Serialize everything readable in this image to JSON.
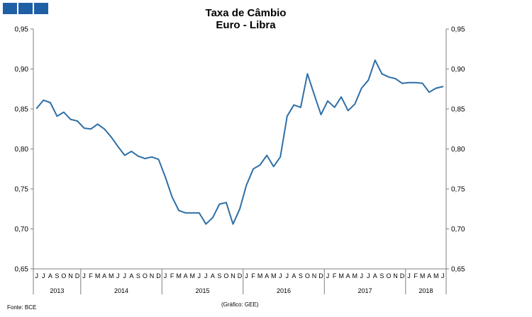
{
  "chart_data": {
    "type": "line",
    "title": "Taxa de Câmbio",
    "subtitle": "Euro - Libra",
    "ylim": [
      0.65,
      0.95
    ],
    "yticks": [
      "0,65",
      "0,70",
      "0,75",
      "0,80",
      "0,85",
      "0,90",
      "0,95"
    ],
    "y_axes": "left and right",
    "grid": false,
    "legend": "none",
    "line_color": "#2e6fa7",
    "month_labels": [
      "J",
      "J",
      "A",
      "S",
      "O",
      "N",
      "D",
      "J",
      "F",
      "M",
      "A",
      "M",
      "J",
      "J",
      "A",
      "S",
      "O",
      "N",
      "D",
      "J",
      "F",
      "M",
      "A",
      "M",
      "J",
      "J",
      "A",
      "S",
      "O",
      "N",
      "D",
      "J",
      "F",
      "M",
      "A",
      "M",
      "J",
      "J",
      "A",
      "S",
      "O",
      "N",
      "D",
      "J",
      "F",
      "M",
      "A",
      "M",
      "J",
      "J",
      "A",
      "S",
      "O",
      "N",
      "D",
      "J",
      "F",
      "M",
      "A",
      "M",
      "J"
    ],
    "years": [
      {
        "label": "2013",
        "months": 7
      },
      {
        "label": "2014",
        "months": 12
      },
      {
        "label": "2015",
        "months": 12
      },
      {
        "label": "2016",
        "months": 12
      },
      {
        "label": "2017",
        "months": 12
      },
      {
        "label": "2018",
        "months": 6
      }
    ],
    "series": [
      {
        "values": [
          0.851,
          0.861,
          0.858,
          0.841,
          0.846,
          0.837,
          0.835,
          0.826,
          0.825,
          0.831,
          0.825,
          0.815,
          0.803,
          0.792,
          0.797,
          0.791,
          0.788,
          0.79,
          0.787,
          0.765,
          0.74,
          0.723,
          0.72,
          0.72,
          0.72,
          0.706,
          0.714,
          0.731,
          0.733,
          0.706,
          0.725,
          0.755,
          0.775,
          0.78,
          0.792,
          0.778,
          0.79,
          0.841,
          0.855,
          0.852,
          0.894,
          0.868,
          0.843,
          0.86,
          0.852,
          0.865,
          0.848,
          0.856,
          0.876,
          0.886,
          0.911,
          0.894,
          0.89,
          0.888,
          0.882,
          0.883,
          0.883,
          0.882,
          0.871,
          0.876,
          0.878
        ]
      }
    ]
  },
  "footer": {
    "source": "Fonte: BCE",
    "credit": "(Gráfico: GEE)"
  },
  "logo": {
    "color": "#1f5fa6",
    "squares": 3
  }
}
